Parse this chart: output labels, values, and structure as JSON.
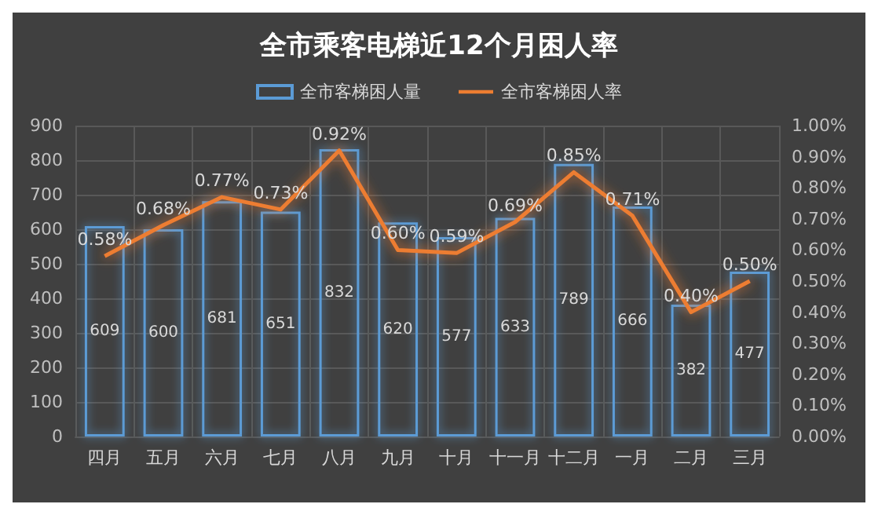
{
  "chart_data": {
    "type": "bar",
    "title": "全市乘客电梯近12个月困人率",
    "categories": [
      "四月",
      "五月",
      "六月",
      "七月",
      "八月",
      "九月",
      "十月",
      "十一月",
      "十二月",
      "一月",
      "二月",
      "三月"
    ],
    "series": [
      {
        "name": "全市客梯困人量",
        "color": "#5b9bd5",
        "values": [
          609,
          600,
          681,
          651,
          832,
          620,
          577,
          633,
          789,
          666,
          382,
          477
        ],
        "value_labels": [
          "609",
          "600",
          "681",
          "651",
          "832",
          "620",
          "577",
          "633",
          "789",
          "666",
          "382",
          "477"
        ]
      },
      {
        "name": "全市客梯困人率",
        "type": "line",
        "axis": "y2",
        "color": "#ed7d31",
        "values": [
          0.58,
          0.68,
          0.77,
          0.73,
          0.92,
          0.6,
          0.59,
          0.69,
          0.85,
          0.71,
          0.4,
          0.5
        ],
        "value_labels": [
          "0.58%",
          "0.68%",
          "0.77%",
          "0.73%",
          "0.92%",
          "0.60%",
          "0.59%",
          "0.69%",
          "0.85%",
          "0.71%",
          "0.40%",
          "0.50%"
        ]
      }
    ],
    "ylim": [
      0,
      900
    ],
    "yticks": [
      0,
      100,
      200,
      300,
      400,
      500,
      600,
      700,
      800,
      900
    ],
    "y2lim": [
      0,
      1
    ],
    "y2ticks": [
      {
        "value": 0,
        "label": "0.00%"
      },
      {
        "value": 0.1,
        "label": "0.10%"
      },
      {
        "value": 0.2,
        "label": "0.20%"
      },
      {
        "value": 0.3,
        "label": "0.30%"
      },
      {
        "value": 0.4,
        "label": "0.40%"
      },
      {
        "value": 0.5,
        "label": "0.50%"
      },
      {
        "value": 0.6,
        "label": "0.60%"
      },
      {
        "value": 0.7,
        "label": "0.70%"
      },
      {
        "value": 0.8,
        "label": "0.80%"
      },
      {
        "value": 0.9,
        "label": "0.90%"
      },
      {
        "value": 1,
        "label": "1.00%"
      }
    ],
    "grid": true,
    "legend": "top",
    "marker": "none",
    "line_style": "solid"
  }
}
